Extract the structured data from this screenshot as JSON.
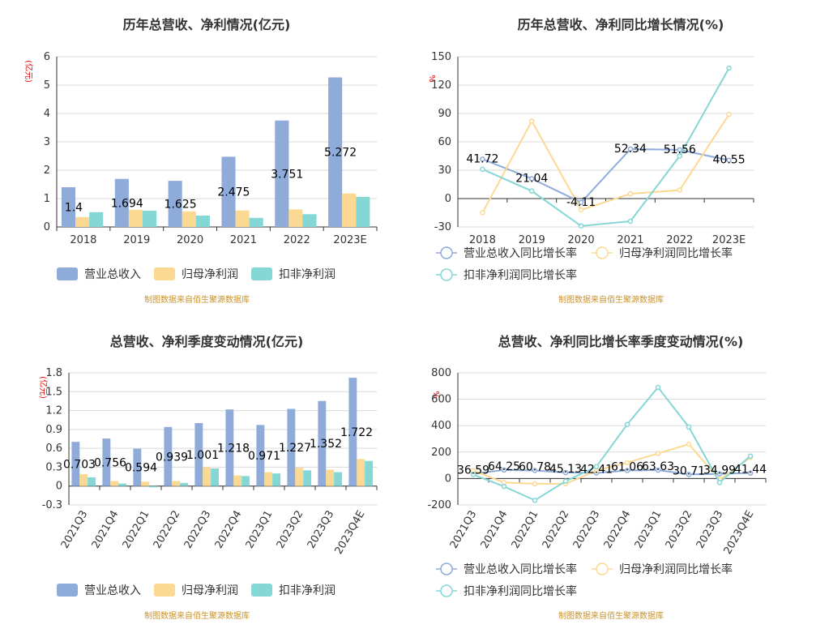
{
  "colors": {
    "revenue": "#8fabda",
    "net_profit": "#fcd993",
    "deducted_profit": "#85d7d6",
    "grid": "#d9d9d9",
    "axis": "#333333",
    "unit": "#e60000",
    "source": "#c8922a"
  },
  "chart_data": [
    {
      "type": "bar",
      "title": "历年总营收、净利情况(亿元)",
      "unit_label": "(亿元)",
      "categories": [
        "2018",
        "2019",
        "2020",
        "2021",
        "2022",
        "2023E"
      ],
      "ylim": [
        0,
        6
      ],
      "yticks": [
        0,
        1,
        2,
        3,
        4,
        5,
        6
      ],
      "series": [
        {
          "name": "营业总收入",
          "values": [
            1.4,
            1.694,
            1.625,
            2.475,
            3.751,
            5.272
          ],
          "labels": [
            "1.4",
            "1.694",
            "1.625",
            "2.475",
            "3.751",
            "5.272"
          ]
        },
        {
          "name": "归母净利润",
          "values": [
            0.35,
            0.6,
            0.55,
            0.58,
            0.62,
            1.18
          ]
        },
        {
          "name": "扣非净利润",
          "values": [
            0.52,
            0.57,
            0.4,
            0.32,
            0.45,
            1.06
          ]
        }
      ],
      "source_note": "制图数据来自佰生聚源数据库"
    },
    {
      "type": "line",
      "title": "历年总营收、净利同比增长情况(%)",
      "unit_label": "%",
      "categories": [
        "2018",
        "2019",
        "2020",
        "2021",
        "2022",
        "2023E"
      ],
      "ylim": [
        -30,
        150
      ],
      "yticks": [
        -30,
        0,
        30,
        60,
        90,
        120,
        150
      ],
      "series": [
        {
          "name": "营业总收入同比增长率",
          "values": [
            41.72,
            21.04,
            -4.11,
            52.34,
            51.56,
            40.55
          ],
          "labels": [
            "41.72",
            "21.04",
            "-4.11",
            "52.34",
            "51.56",
            "40.55"
          ]
        },
        {
          "name": "归母净利润同比增长率",
          "values": [
            -15,
            82,
            -12,
            5,
            9,
            89
          ]
        },
        {
          "name": "扣非净利润同比增长率",
          "values": [
            31,
            8,
            -29,
            -24,
            45,
            138
          ]
        }
      ],
      "source_note": "制图数据来自佰生聚源数据库"
    },
    {
      "type": "bar",
      "title": "总营收、净利季度变动情况(亿元)",
      "unit_label": "(亿元)",
      "categories": [
        "2021Q3",
        "2021Q4",
        "2022Q1",
        "2022Q2",
        "2022Q3",
        "2022Q4",
        "2023Q1",
        "2023Q2",
        "2023Q3",
        "2023Q4E"
      ],
      "ylim": [
        -0.3,
        1.8
      ],
      "yticks": [
        -0.3,
        0,
        0.3,
        0.6,
        0.9,
        1.2,
        1.5,
        1.8
      ],
      "series": [
        {
          "name": "营业总收入",
          "values": [
            0.703,
            0.756,
            0.594,
            0.939,
            1.001,
            1.218,
            0.971,
            1.227,
            1.352,
            1.722
          ],
          "labels": [
            "0.703",
            "0.756",
            "0.594",
            "0.939",
            "1.001",
            "1.218",
            "0.971",
            "1.227",
            "1.352",
            "1.722"
          ]
        },
        {
          "name": "归母净利润",
          "values": [
            0.19,
            0.08,
            0.07,
            0.08,
            0.3,
            0.17,
            0.22,
            0.29,
            0.26,
            0.43
          ]
        },
        {
          "name": "扣非净利润",
          "values": [
            0.14,
            0.04,
            -0.02,
            0.05,
            0.28,
            0.16,
            0.2,
            0.25,
            0.22,
            0.4
          ]
        }
      ],
      "source_note": "制图数据来自佰生聚源数据库"
    },
    {
      "type": "line",
      "title": "总营收、净利同比增长率季度变动情况(%)",
      "unit_label": "%",
      "categories": [
        "2021Q3",
        "2021Q4",
        "2022Q1",
        "2022Q2",
        "2022Q3",
        "2022Q4",
        "2023Q1",
        "2023Q2",
        "2023Q3",
        "2023Q4E"
      ],
      "ylim": [
        -200,
        800
      ],
      "yticks": [
        -200,
        0,
        200,
        400,
        600,
        800
      ],
      "series": [
        {
          "name": "营业总收入同比增长率",
          "values": [
            36.59,
            64.25,
            60.78,
            45.13,
            42.41,
            61.06,
            63.63,
            30.71,
            34.99,
            41.44
          ],
          "labels": [
            "36.59",
            "64.25",
            "60.78",
            "45.13",
            "42.41",
            "61.06",
            "63.63",
            "30.71",
            "34.99",
            "41.44"
          ]
        },
        {
          "name": "归母净利润同比增长率",
          "values": [
            60,
            -30,
            -40,
            -40,
            60,
            120,
            190,
            260,
            -10,
            160
          ]
        },
        {
          "name": "扣非净利润同比增长率",
          "values": [
            30,
            -60,
            -165,
            -20,
            90,
            410,
            690,
            390,
            -30,
            170
          ]
        }
      ],
      "source_note": "制图数据来自佰生聚源数据库"
    }
  ]
}
